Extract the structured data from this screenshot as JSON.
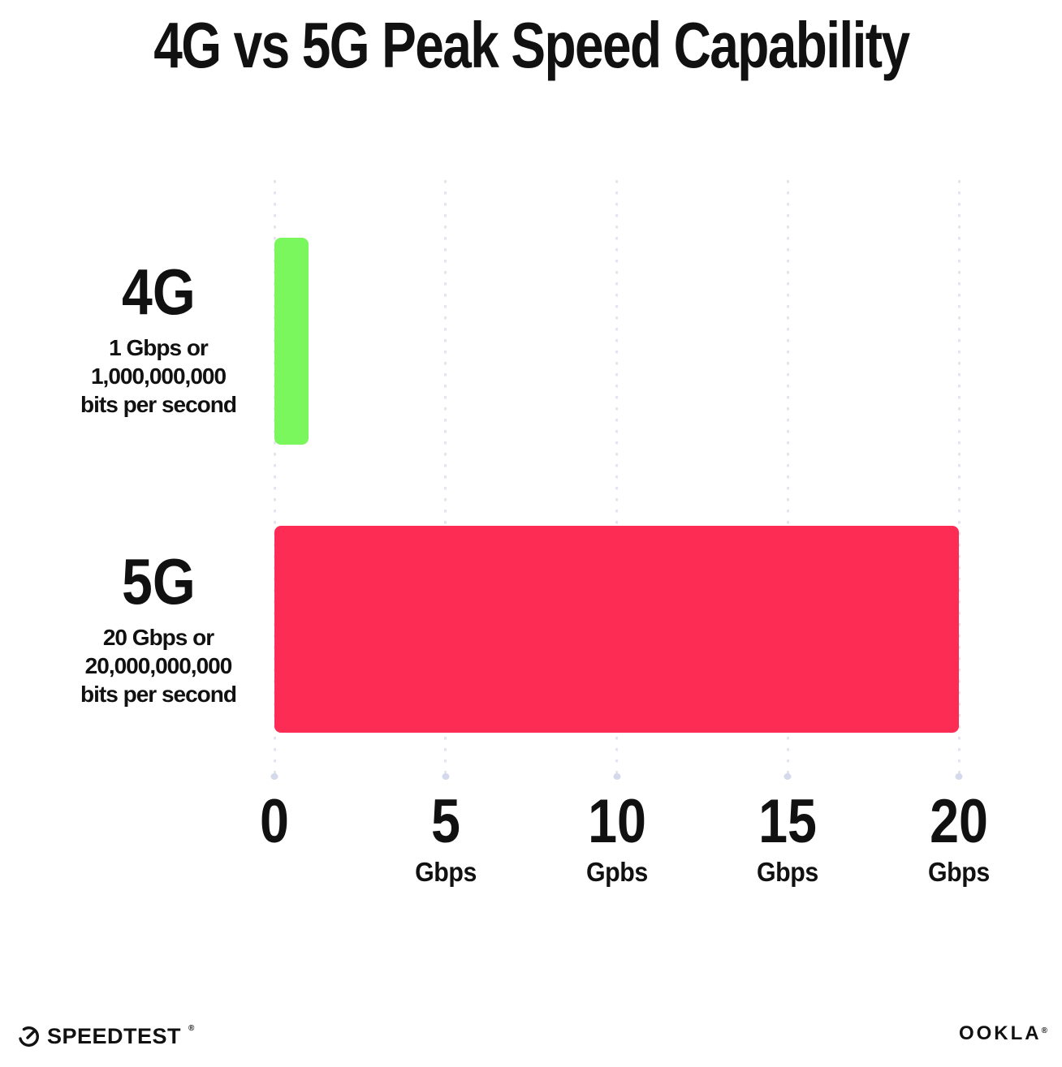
{
  "title": "4G vs 5G Peak Speed Capability",
  "chart_data": {
    "type": "bar",
    "orientation": "horizontal",
    "title": "4G vs 5G Peak Speed Capability",
    "categories": [
      "4G",
      "5G"
    ],
    "values": [
      1,
      20
    ],
    "value_unit": "Gbps",
    "xlim": [
      0,
      20
    ],
    "grid": "vertical-dotted",
    "legend": "none",
    "xticks": [
      {
        "value": 0,
        "label": "0",
        "unit": ""
      },
      {
        "value": 5,
        "label": "5",
        "unit": "Gbps"
      },
      {
        "value": 10,
        "label": "10",
        "unit": "Gpbs"
      },
      {
        "value": 15,
        "label": "15",
        "unit": "Gbps"
      },
      {
        "value": 20,
        "label": "20",
        "unit": "Gbps"
      }
    ],
    "bars": [
      {
        "name": "4G",
        "value": 1,
        "color": "#7bf75e",
        "description_lines": [
          "1 Gbps or",
          "1,000,000,000",
          "bits per second"
        ]
      },
      {
        "name": "5G",
        "value": 20,
        "color": "#fc2c55",
        "description_lines": [
          "20 Gbps or",
          "20,000,000,000",
          "bits per second"
        ]
      }
    ]
  },
  "footer": {
    "speedtest_label": "SPEEDTEST",
    "speedtest_trademark": "®",
    "ookla_label": "OOKLA",
    "ookla_trademark": "®"
  },
  "colors": {
    "background": "#ffffff",
    "text": "#111111",
    "bar_4g": "#7bf75e",
    "bar_5g": "#fc2c55",
    "gridline_dot": "#e4e4f1",
    "gridline_end_dot": "#d5d9ec"
  }
}
